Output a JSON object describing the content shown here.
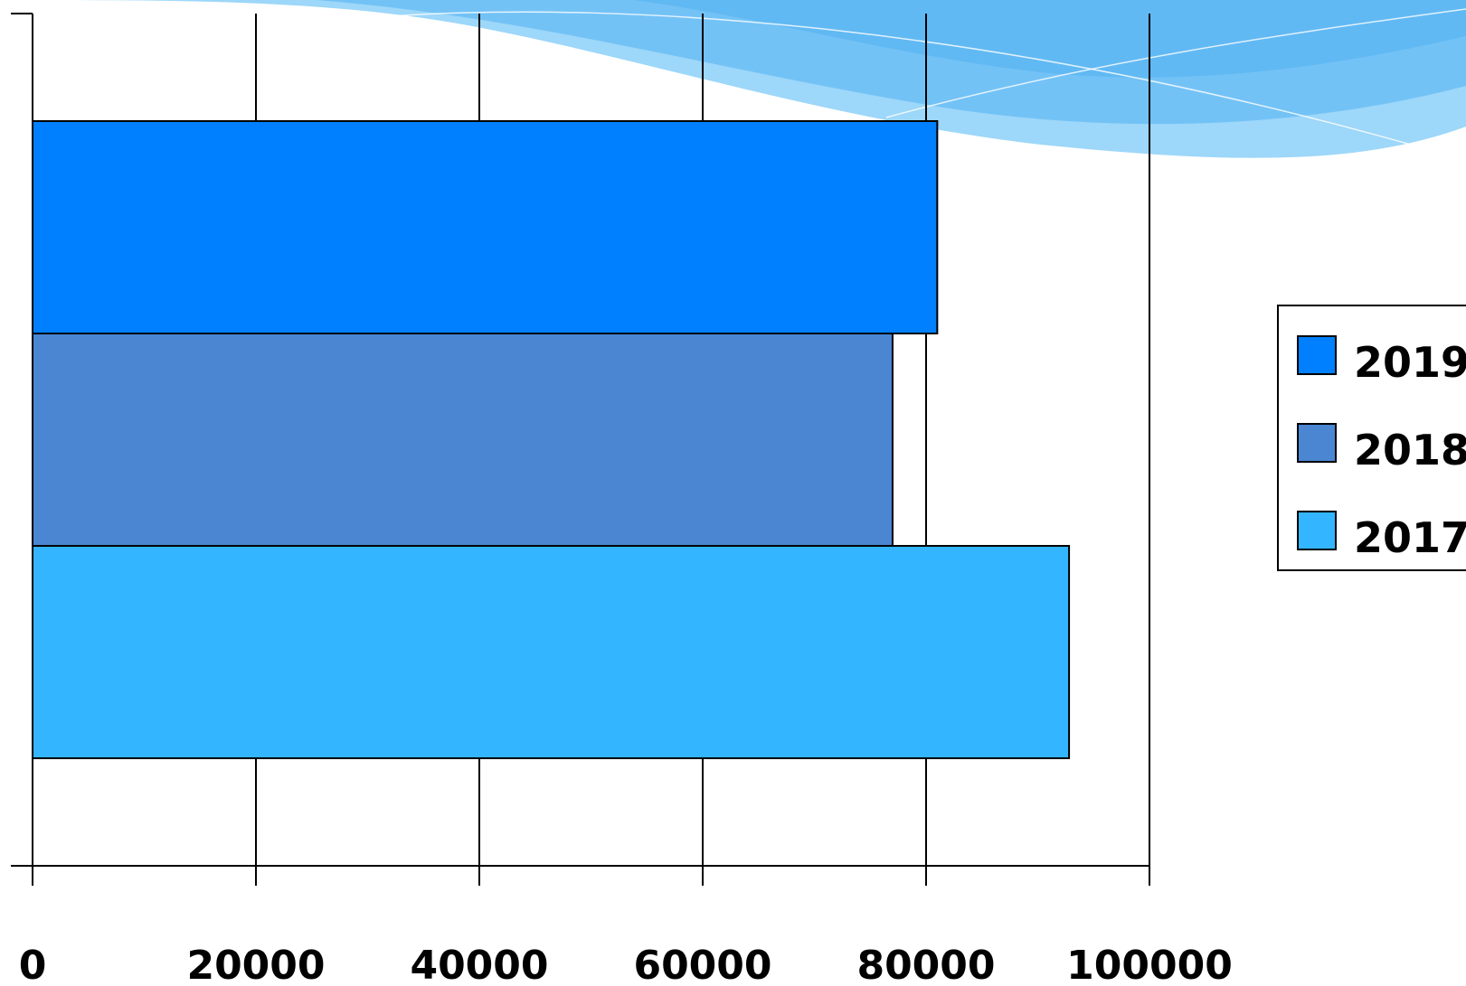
{
  "chart_data": {
    "type": "bar",
    "orientation": "horizontal",
    "categories": [
      ""
    ],
    "series": [
      {
        "name": "2019",
        "values": [
          81000
        ],
        "color": "#0080ff"
      },
      {
        "name": "2018",
        "values": [
          77000
        ],
        "color": "#4a86d2"
      },
      {
        "name": "2017",
        "values": [
          92800
        ],
        "color": "#33b5ff"
      }
    ],
    "bar_order_top_to_bottom": [
      "2019",
      "2018",
      "2017"
    ],
    "legend_order_top_to_bottom": [
      "2019",
      "2018",
      "2017"
    ],
    "xlim": [
      0,
      100000
    ],
    "xticks": [
      0,
      20000,
      40000,
      60000,
      80000,
      100000
    ],
    "xtick_labels": [
      "0",
      "20000",
      "40000",
      "60000",
      "80000",
      "100000"
    ],
    "grid": true,
    "legend_position": "right",
    "title": "",
    "xlabel": "",
    "ylabel": ""
  },
  "background": {
    "wave_color": "#6fc0f5"
  }
}
